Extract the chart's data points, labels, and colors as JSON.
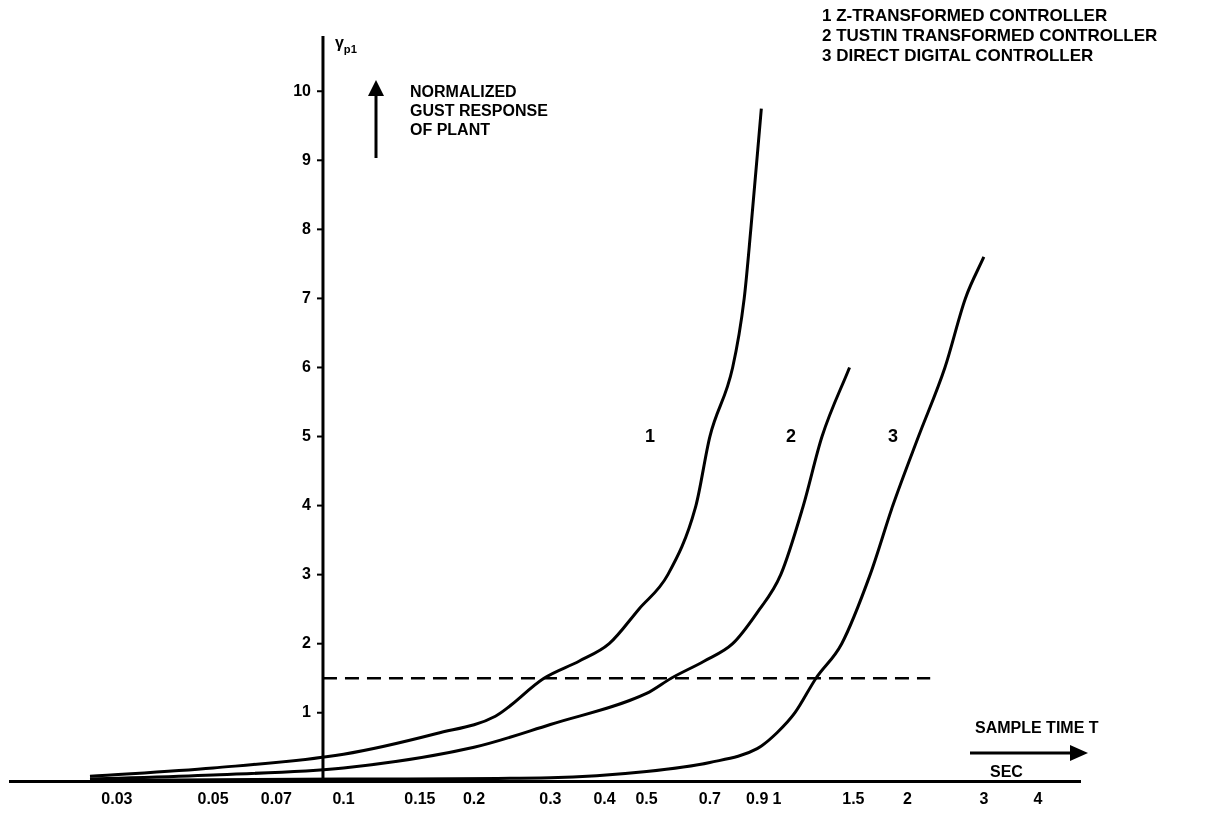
{
  "chart_data": {
    "type": "line",
    "xlabel": "SAMPLE TIME T",
    "ylabel": "γ$_{p1}$",
    "log": "x",
    "grid": false,
    "marker": "none",
    "line_style": "solid",
    "xlim": [
      0.017,
      5
    ],
    "xticks": [
      0.03,
      0.05,
      0.07,
      0.1,
      0.15,
      0.2,
      0.3,
      0.4,
      0.5,
      0.7,
      0.9,
      1,
      1.5,
      2,
      3,
      4
    ],
    "ylim": [
      0,
      10.8
    ],
    "yticks": [
      1,
      2,
      3,
      4,
      5,
      6,
      7,
      8,
      9,
      10
    ],
    "series": [
      {
        "color": "#000000",
        "x": [
          0.026,
          0.05,
          0.1,
          0.164,
          0.224,
          0.29,
          0.35,
          0.41,
          0.48,
          0.56,
          0.65,
          0.7,
          0.79,
          0.84,
          0.87,
          0.92
        ],
        "values": [
          0.08,
          0.2,
          0.4,
          0.7,
          0.95,
          1.5,
          1.75,
          2.0,
          2.5,
          3.0,
          4.0,
          5.0,
          6.0,
          7.0,
          8.0,
          9.75
        ]
      },
      {
        "color": "#000000",
        "x": [
          0.026,
          0.05,
          0.1,
          0.2,
          0.3,
          0.5,
          0.57,
          0.68,
          0.79,
          0.9,
          1.02,
          1.15,
          1.27,
          1.47
        ],
        "values": [
          0.04,
          0.1,
          0.2,
          0.5,
          0.83,
          1.28,
          1.5,
          1.75,
          2.0,
          2.45,
          3.0,
          4.0,
          5.0,
          6.0
        ]
      },
      {
        "color": "#000000",
        "x": [
          0.026,
          0.1,
          0.3,
          0.5,
          0.7,
          0.9,
          1.0,
          1.1,
          1.23,
          1.41,
          1.64,
          1.85,
          2.12,
          2.44,
          2.72,
          3.0
        ],
        "values": [
          0.02,
          0.04,
          0.06,
          0.15,
          0.28,
          0.48,
          0.71,
          1.0,
          1.5,
          2.0,
          3.0,
          4.0,
          5.0,
          6.0,
          7.0,
          7.6
        ]
      }
    ],
    "ref_lines": [
      {
        "axis": "y",
        "value": 1.5,
        "line_style": "dashed",
        "color": "#000000"
      }
    ],
    "annotations": [
      "1 Z-TRANSFORMED CONTROLLER",
      "2 TUSTIN TRANSFORMED CONTROLLER",
      "3 DIRECT DIGITAL CONTROLLER",
      "NORMALIZED GUST RESPONSE OF PLANT",
      "SEC",
      "1",
      "2",
      "3"
    ]
  }
}
